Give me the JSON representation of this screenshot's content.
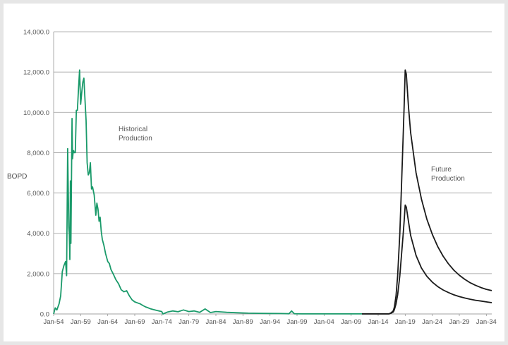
{
  "chart_data": {
    "type": "line",
    "title": "",
    "ylabel": "BOPD",
    "xlabel": "",
    "ylim": [
      0,
      14000
    ],
    "grid": "horizontal",
    "x_tick_labels": [
      "Jan-54",
      "Jan-59",
      "Jan-64",
      "Jan-69",
      "Jan-74",
      "Jan-79",
      "Jan-84",
      "Jan-89",
      "Jan-94",
      "Jan-99",
      "Jan-04",
      "Jan-09",
      "Jan-14",
      "Jan-19",
      "Jan-24",
      "Jan-29",
      "Jan-34"
    ],
    "y_tick_labels": [
      "0.0",
      "2,000.0",
      "4,000.0",
      "6,000.0",
      "8,000.0",
      "10,000.0",
      "12,000.0",
      "14,000.0"
    ],
    "annotations": {
      "historical_line1": "Historical",
      "historical_line2": "Production",
      "future_line1": "Future",
      "future_line2": "Production"
    },
    "colors": {
      "historical": "#1a9a6a",
      "future": "#1a1a1a",
      "grid": "#9a9a9a"
    },
    "series": [
      {
        "key": "historical",
        "x": [
          1954.0,
          1954.3,
          1954.6,
          1955.0,
          1955.3,
          1955.6,
          1955.9,
          1956.2,
          1956.4,
          1956.6,
          1956.8,
          1956.9,
          1957.0,
          1957.1,
          1957.2,
          1957.4,
          1957.5,
          1957.6,
          1957.7,
          1957.8,
          1957.9,
          1958.0,
          1958.2,
          1958.4,
          1958.6,
          1958.8,
          1959.0,
          1959.2,
          1959.4,
          1959.6,
          1959.8,
          1960.0,
          1960.2,
          1960.4,
          1960.6,
          1960.8,
          1961.0,
          1961.2,
          1961.5,
          1961.8,
          1962.0,
          1962.2,
          1962.4,
          1962.6,
          1962.8,
          1963.0,
          1963.3,
          1963.6,
          1964.0,
          1964.3,
          1964.6,
          1965.0,
          1965.5,
          1966.0,
          1966.5,
          1967.0,
          1967.5,
          1968.0,
          1968.5,
          1969.0,
          1969.5,
          1970.0,
          1970.5,
          1971.0,
          1971.5,
          1972.0,
          1973.0,
          1974.0,
          1974.2,
          1975.0,
          1976.0,
          1977.0,
          1978.0,
          1979.0,
          1980.0,
          1981.0,
          1982.0,
          1983.0,
          1984.0,
          1985.0,
          1986.0,
          1988.0,
          1990.0,
          1992.0,
          1994.0,
          1996.0,
          1997.5,
          1998.0,
          1998.5,
          2000.0,
          2003.0,
          2006.0,
          2009.0,
          2011.0
        ],
        "y": [
          0,
          300,
          200,
          500,
          900,
          2100,
          2400,
          2600,
          1900,
          8200,
          4300,
          4000,
          2700,
          6600,
          3500,
          9700,
          7700,
          8000,
          8100,
          8000,
          8000,
          8000,
          10100,
          10100,
          11200,
          12100,
          10400,
          11000,
          11500,
          11700,
          10600,
          9600,
          7500,
          6900,
          7000,
          7500,
          6200,
          6300,
          5900,
          4900,
          5500,
          5200,
          4600,
          4800,
          4100,
          3700,
          3400,
          3000,
          2600,
          2500,
          2200,
          2000,
          1700,
          1500,
          1200,
          1100,
          1150,
          900,
          700,
          600,
          550,
          500,
          420,
          350,
          300,
          250,
          180,
          120,
          0,
          90,
          150,
          110,
          200,
          120,
          150,
          80,
          250,
          70,
          120,
          100,
          80,
          60,
          40,
          30,
          25,
          20,
          10,
          150,
          10,
          5,
          5,
          5,
          5,
          5
        ]
      },
      {
        "key": "future-high",
        "x": [
          2011.0,
          2014.0,
          2015.0,
          2016.0,
          2016.4,
          2016.8,
          2017.0,
          2017.3,
          2017.6,
          2018.0,
          2018.3,
          2018.6,
          2018.8,
          2019.0,
          2019.2,
          2019.6,
          2020.0,
          2021.0,
          2022.0,
          2023.0,
          2024.0,
          2025.0,
          2026.0,
          2027.0,
          2028.0,
          2029.0,
          2030.0,
          2031.0,
          2032.0,
          2033.0,
          2034.0,
          2035.0
        ],
        "y": [
          5,
          5,
          5,
          5,
          60,
          160,
          350,
          900,
          1900,
          4000,
          6300,
          8700,
          10300,
          12100,
          11900,
          10300,
          9000,
          7000,
          5700,
          4700,
          3950,
          3350,
          2870,
          2480,
          2170,
          1920,
          1720,
          1550,
          1420,
          1310,
          1220,
          1160
        ]
      },
      {
        "key": "future-low",
        "x": [
          2011.0,
          2014.0,
          2015.0,
          2016.0,
          2016.4,
          2016.8,
          2017.0,
          2017.3,
          2017.6,
          2018.0,
          2018.3,
          2018.6,
          2018.8,
          2019.0,
          2019.2,
          2019.6,
          2020.0,
          2021.0,
          2022.0,
          2023.0,
          2024.0,
          2025.0,
          2026.0,
          2027.0,
          2028.0,
          2029.0,
          2030.0,
          2031.0,
          2032.0,
          2033.0,
          2034.0,
          2035.0
        ],
        "y": [
          5,
          5,
          5,
          5,
          40,
          100,
          220,
          500,
          950,
          1900,
          2900,
          3900,
          4600,
          5400,
          5300,
          4600,
          3900,
          2900,
          2280,
          1870,
          1580,
          1360,
          1190,
          1060,
          950,
          860,
          790,
          730,
          680,
          640,
          600,
          560
        ]
      }
    ]
  }
}
